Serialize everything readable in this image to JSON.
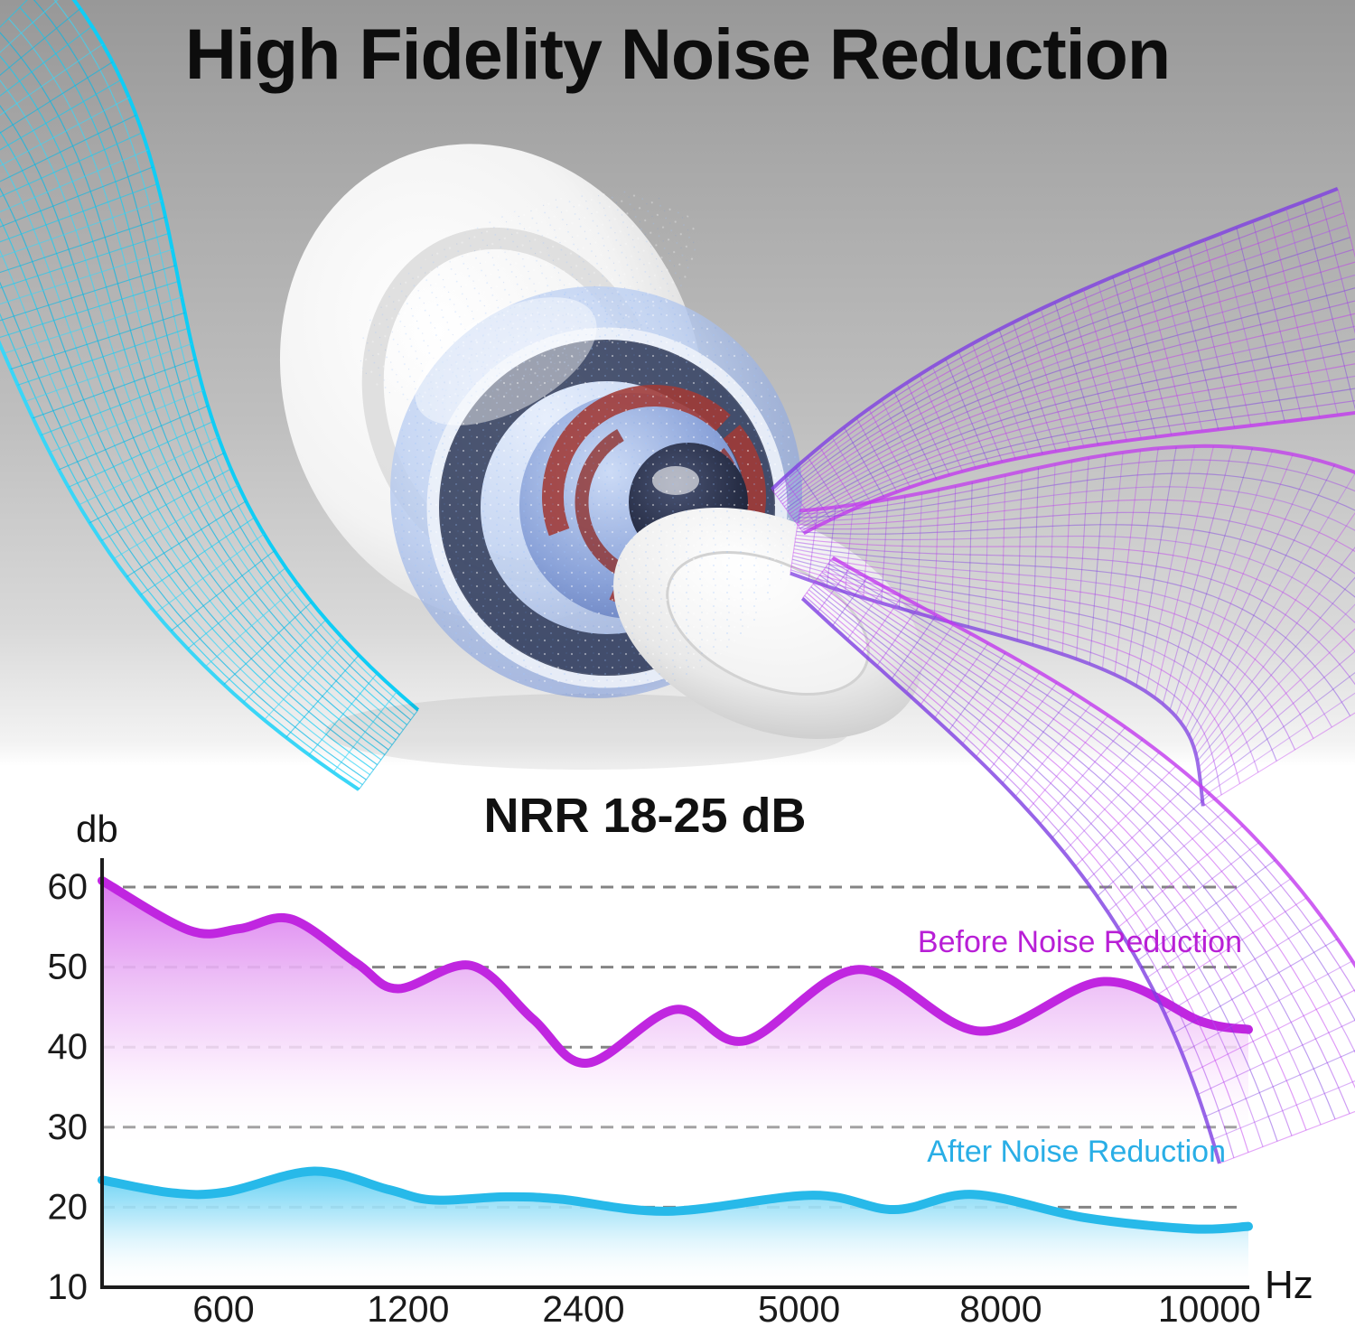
{
  "hero": {
    "title": "High Fidelity Noise Reduction",
    "art": {
      "subject": "earplug-render",
      "left_wave": "cyan-sound-wave",
      "right_wave": "purple-sound-wave"
    }
  },
  "chart": {
    "title": "NRR 18-25 dB",
    "y_axis": {
      "unit_label": "db"
    },
    "x_axis": {
      "unit_label": "Hz"
    },
    "colors": {
      "grid": "#848484",
      "axis": "#1c1c1c",
      "tick_text": "#1a1a1a",
      "before_accent": "#b81fd6",
      "after_accent": "#29aee6"
    }
  },
  "chart_data": {
    "type": "area",
    "title": "NRR 18-25 dB",
    "xlabel": "Hz",
    "ylabel": "db",
    "y_ticks": [
      60,
      50,
      40,
      30,
      20,
      10
    ],
    "ylim": [
      10,
      65
    ],
    "grid": "dashed-horizontal",
    "legend_position": "inside-right",
    "x_tick_labels": [
      "600",
      "1200",
      "2400",
      "5000",
      "8000",
      "10000"
    ],
    "x_tick_positions": [
      0.106,
      0.267,
      0.42,
      0.608,
      0.784,
      0.966
    ],
    "series": [
      {
        "name": "Before Noise Reduction",
        "color": "#c026e0",
        "points_u_db": [
          [
            0.0,
            60.8
          ],
          [
            0.076,
            54.6
          ],
          [
            0.12,
            54.8
          ],
          [
            0.165,
            56.0
          ],
          [
            0.222,
            50.5
          ],
          [
            0.258,
            47.3
          ],
          [
            0.322,
            50.2
          ],
          [
            0.376,
            43.5
          ],
          [
            0.423,
            38.0
          ],
          [
            0.5,
            44.7
          ],
          [
            0.561,
            40.8
          ],
          [
            0.66,
            49.7
          ],
          [
            0.766,
            42.0
          ],
          [
            0.874,
            48.2
          ],
          [
            0.959,
            43.2
          ],
          [
            1.0,
            42.2
          ]
        ]
      },
      {
        "name": "After Noise Reduction",
        "color": "#27b9e9",
        "points_u_db": [
          [
            0.0,
            23.4
          ],
          [
            0.061,
            21.8
          ],
          [
            0.108,
            21.9
          ],
          [
            0.185,
            24.5
          ],
          [
            0.25,
            22.2
          ],
          [
            0.289,
            20.9
          ],
          [
            0.352,
            21.3
          ],
          [
            0.4,
            21.0
          ],
          [
            0.494,
            19.5
          ],
          [
            0.62,
            21.5
          ],
          [
            0.691,
            19.7
          ],
          [
            0.76,
            21.6
          ],
          [
            0.857,
            18.7
          ],
          [
            0.951,
            17.3
          ],
          [
            1.0,
            17.6
          ]
        ]
      }
    ]
  }
}
